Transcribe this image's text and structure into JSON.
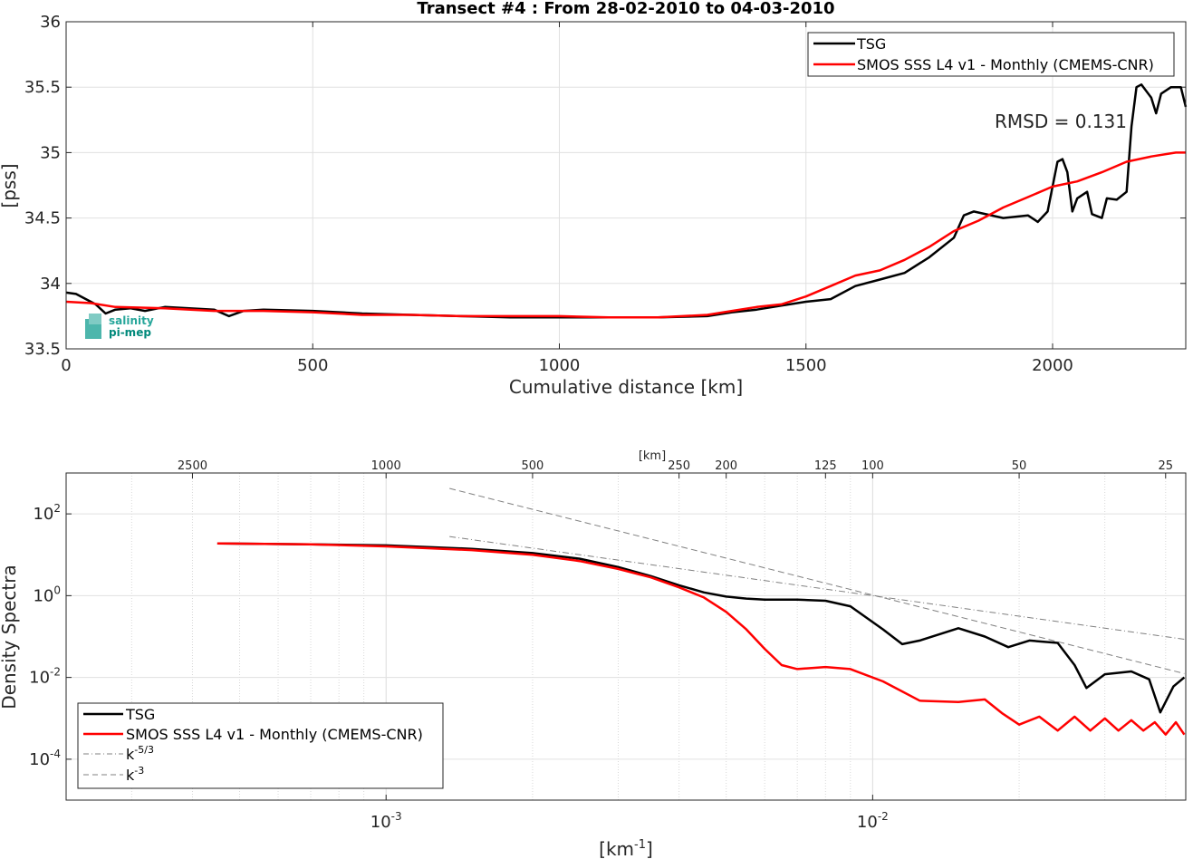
{
  "chart_data": [
    {
      "type": "line",
      "title": "Transect #4 : From 28-02-2010 to 04-03-2010",
      "xlabel": "Cumulative distance [km]",
      "ylabel": "[pss]",
      "xlim": [
        0,
        2270
      ],
      "ylim": [
        33.5,
        36
      ],
      "xticks": [
        "0",
        "500",
        "1000",
        "1500",
        "2000"
      ],
      "yticks": [
        "33.5",
        "34",
        "34.5",
        "35",
        "35.5",
        "36"
      ],
      "grid": true,
      "legend_position": "top-right",
      "annotation": "RMSD = 0.131",
      "series": [
        {
          "name": "TSG",
          "color": "#000000",
          "x": [
            0,
            20,
            40,
            60,
            80,
            100,
            130,
            160,
            200,
            250,
            300,
            330,
            360,
            400,
            500,
            600,
            700,
            800,
            900,
            1000,
            1100,
            1200,
            1300,
            1350,
            1400,
            1450,
            1500,
            1550,
            1600,
            1650,
            1700,
            1750,
            1800,
            1820,
            1840,
            1900,
            1950,
            1970,
            1990,
            2010,
            2020,
            2030,
            2040,
            2050,
            2070,
            2080,
            2100,
            2110,
            2130,
            2150,
            2160,
            2170,
            2180,
            2200,
            2210,
            2220,
            2240,
            2260,
            2270
          ],
          "y": [
            33.93,
            33.92,
            33.88,
            33.84,
            33.77,
            33.8,
            33.81,
            33.79,
            33.82,
            33.81,
            33.8,
            33.75,
            33.79,
            33.8,
            33.79,
            33.77,
            33.76,
            33.75,
            33.74,
            33.74,
            33.74,
            33.74,
            33.75,
            33.78,
            33.8,
            33.83,
            33.86,
            33.88,
            33.98,
            34.03,
            34.08,
            34.2,
            34.35,
            34.52,
            34.55,
            34.5,
            34.52,
            34.47,
            34.55,
            34.93,
            34.95,
            34.85,
            34.55,
            34.65,
            34.7,
            34.53,
            34.5,
            34.65,
            34.64,
            34.7,
            35.2,
            35.5,
            35.52,
            35.42,
            35.3,
            35.45,
            35.5,
            35.5,
            35.35
          ]
        },
        {
          "name": "SMOS SSS L4 v1 - Monthly (CMEMS-CNR)",
          "color": "#ff0000",
          "x": [
            0,
            50,
            100,
            200,
            300,
            400,
            500,
            600,
            700,
            800,
            900,
            1000,
            1100,
            1200,
            1300,
            1350,
            1400,
            1450,
            1500,
            1550,
            1600,
            1650,
            1700,
            1750,
            1800,
            1850,
            1900,
            1950,
            2000,
            2050,
            2100,
            2150,
            2200,
            2250,
            2270
          ],
          "y": [
            33.86,
            33.85,
            33.82,
            33.81,
            33.79,
            33.79,
            33.78,
            33.76,
            33.76,
            33.75,
            33.75,
            33.75,
            33.74,
            33.74,
            33.76,
            33.79,
            33.82,
            33.84,
            33.9,
            33.98,
            34.06,
            34.1,
            34.18,
            34.28,
            34.4,
            34.48,
            34.58,
            34.66,
            34.74,
            34.78,
            34.85,
            34.93,
            34.97,
            35.0,
            35.0
          ]
        }
      ]
    },
    {
      "type": "line",
      "xlabel": "[km",
      "xlabel_sup": "-1",
      "xlabel_tail": "]",
      "ylabel": "Density Spectra",
      "x_scale": "log",
      "y_scale": "log",
      "xlim": [
        0.00022,
        0.044
      ],
      "ylim": [
        1e-05,
        1000
      ],
      "xticks": [
        {
          "value": 0.001,
          "base": "10",
          "exp": "-3"
        },
        {
          "value": 0.01,
          "base": "10",
          "exp": "-2"
        }
      ],
      "yticks": [
        {
          "value": 100,
          "base": "10",
          "exp": "2"
        },
        {
          "value": 1,
          "base": "10",
          "exp": "0"
        },
        {
          "value": 0.01,
          "base": "10",
          "exp": "-2"
        },
        {
          "value": 0.0001,
          "base": "10",
          "exp": "-4"
        }
      ],
      "top_axis_label": "[km]",
      "top_ticks": [
        "2500",
        "1000",
        "500",
        "250",
        "200",
        "125",
        "100",
        "50",
        "25"
      ],
      "top_tick_values": [
        2500,
        1000,
        500,
        250,
        200,
        125,
        100,
        50,
        25
      ],
      "grid": true,
      "legend_position": "bottom-left",
      "series": [
        {
          "name": "TSG",
          "color": "#000000",
          "x": [
            0.00045,
            0.0007,
            0.001,
            0.0015,
            0.002,
            0.0025,
            0.003,
            0.0035,
            0.004,
            0.0045,
            0.005,
            0.0055,
            0.006,
            0.007,
            0.008,
            0.009,
            0.0105,
            0.0115,
            0.0125,
            0.015,
            0.017,
            0.019,
            0.021,
            0.024,
            0.026,
            0.0275,
            0.03,
            0.034,
            0.037,
            0.039,
            0.0415,
            0.0437
          ],
          "y": [
            19,
            18,
            17,
            14,
            11,
            8,
            5,
            3,
            1.8,
            1.2,
            0.95,
            0.85,
            0.8,
            0.8,
            0.75,
            0.55,
            0.15,
            0.065,
            0.08,
            0.16,
            0.1,
            0.055,
            0.08,
            0.07,
            0.02,
            0.0055,
            0.012,
            0.014,
            0.009,
            0.0014,
            0.006,
            0.01
          ]
        },
        {
          "name": "SMOS SSS L4 v1 - Monthly (CMEMS-CNR)",
          "color": "#ff0000",
          "x": [
            0.00045,
            0.0007,
            0.001,
            0.0015,
            0.002,
            0.0025,
            0.003,
            0.0035,
            0.004,
            0.0045,
            0.005,
            0.0055,
            0.006,
            0.0065,
            0.007,
            0.008,
            0.009,
            0.0105,
            0.0125,
            0.015,
            0.017,
            0.0185,
            0.02,
            0.022,
            0.024,
            0.026,
            0.028,
            0.03,
            0.032,
            0.034,
            0.036,
            0.038,
            0.04,
            0.042,
            0.0437
          ],
          "y": [
            19,
            18,
            16,
            13,
            10,
            7,
            4.5,
            2.8,
            1.6,
            0.9,
            0.4,
            0.15,
            0.05,
            0.02,
            0.016,
            0.018,
            0.016,
            0.008,
            0.0027,
            0.0025,
            0.0029,
            0.0013,
            0.0007,
            0.0011,
            0.0005,
            0.0011,
            0.0005,
            0.001,
            0.0005,
            0.0009,
            0.0005,
            0.0008,
            0.0004,
            0.0008,
            0.0004
          ]
        },
        {
          "name": "k-5/3",
          "name_base": "k",
          "name_sup": "-5/3",
          "color": "#808080",
          "x": [
            0.00135,
            0.0437
          ],
          "y": [
            28,
            0.086
          ]
        },
        {
          "name": "k-3",
          "name_base": "k",
          "name_sup": "-3",
          "color": "#808080",
          "x": [
            0.00135,
            0.0437
          ],
          "y": [
            420,
            0.0124
          ]
        }
      ]
    }
  ],
  "logo": {
    "line1": "salinity",
    "line2": "pi-mep"
  }
}
